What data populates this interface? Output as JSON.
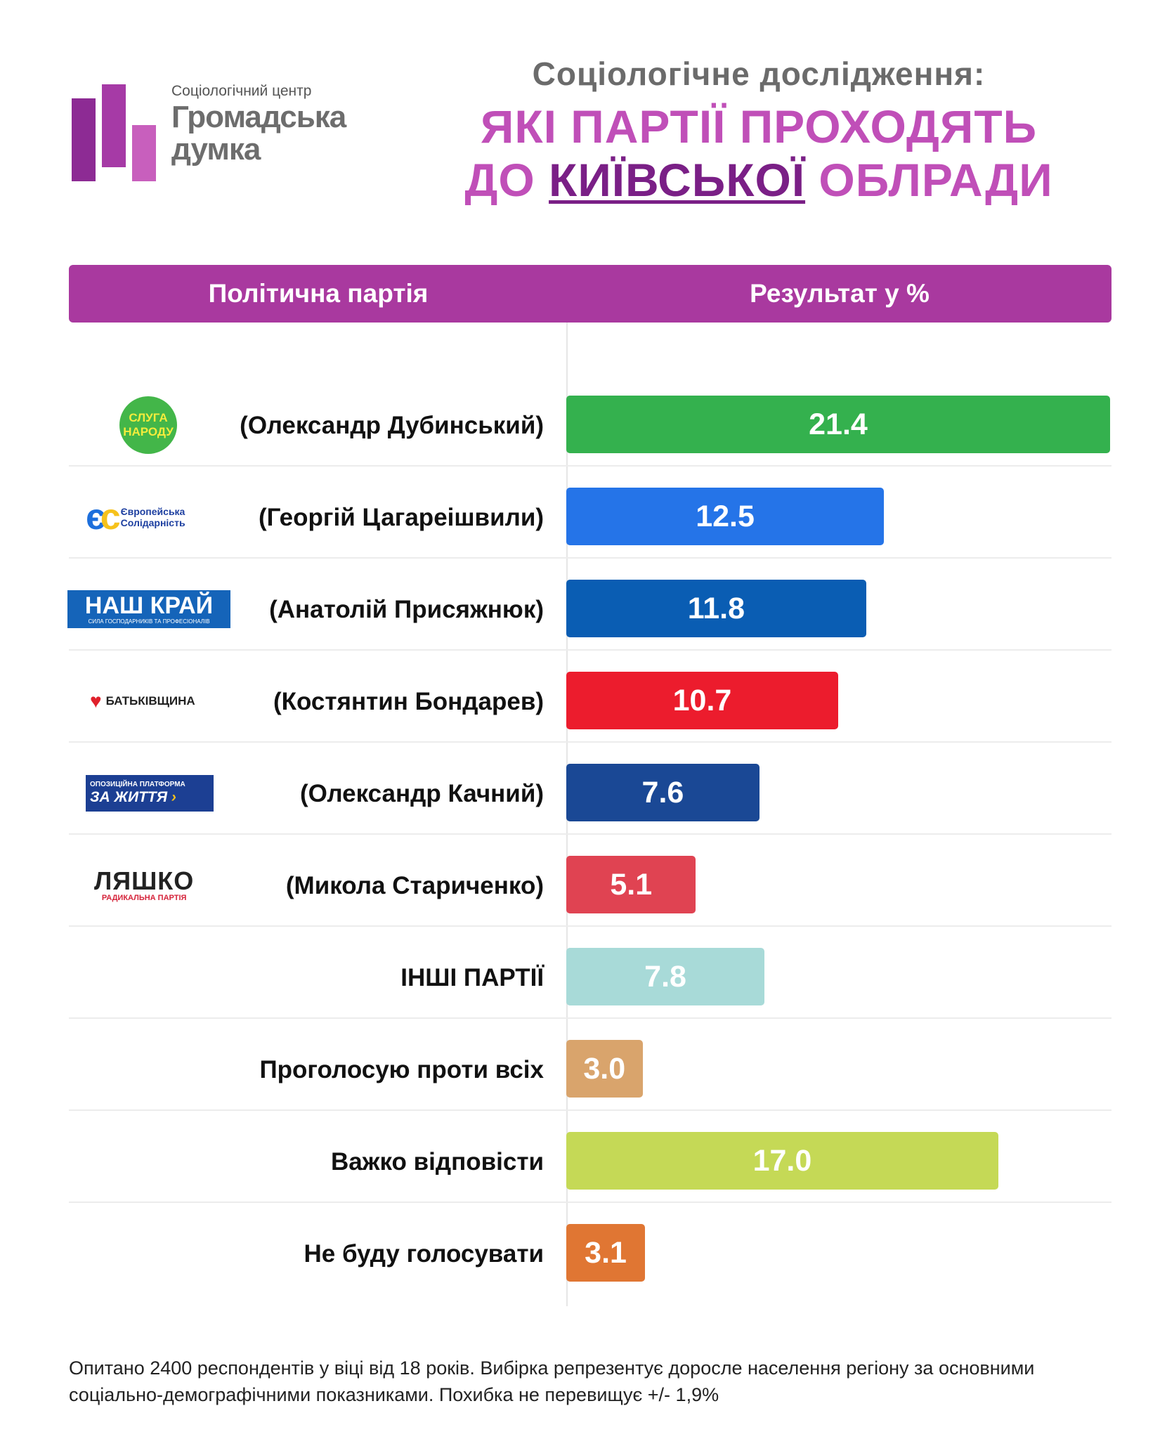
{
  "logo": {
    "caption": "Соціологічний центр",
    "name_line1": "Громадська",
    "name_line2": "думка"
  },
  "header": {
    "subtitle": "Соціологічне дослідження:",
    "title_line1": "ЯКІ ПАРТІЇ ПРОХОДЯТЬ",
    "title_line2_pre": "ДО ",
    "title_line2_highlight": "КИЇВСЬКОЇ",
    "title_line2_post": " ОБЛРАДИ"
  },
  "table_header": {
    "party": "Політична партія",
    "result": "Результат у %"
  },
  "party_logos": {
    "sluha": "СЛУГА НАРОДУ",
    "es_line1": "Європейська",
    "es_line2": "Солідарність",
    "nk_main": "НАШ КРАЙ",
    "nk_sub": "СИЛА ГОСПОДАРНИКІВ ТА ПРОФЕСІОНАЛІВ",
    "bat": "БАТЬКІВЩИНА",
    "opzzh_sub": "ОПОЗИЦІЙНА ПЛАТФОРМА",
    "opzzh_main": "ЗА ЖИТТЯ",
    "lyashko_main": "ЛЯШКО",
    "lyashko_sub": "РАДИКАЛЬНА ПАРТІЯ"
  },
  "chart_data": {
    "type": "bar",
    "orientation": "horizontal",
    "categories": [
      "(Олександр Дубинський)",
      "(Георгій Цагареішвили)",
      "(Анатолій Присяжнюк)",
      "(Костянтин Бондарев)",
      "(Олександр Качний)",
      "(Микола Стариченко)",
      "ІНШІ ПАРТІЇ",
      "Проголосую проти всіх",
      "Важко відповісти",
      "Не буду голосувати"
    ],
    "values": [
      21.4,
      12.5,
      11.8,
      10.7,
      7.6,
      5.1,
      7.8,
      3.0,
      17.0,
      3.1
    ],
    "value_labels": [
      "21.4",
      "12.5",
      "11.8",
      "10.7",
      "7.6",
      "5.1",
      "7.8",
      "3.0",
      "17.0",
      "3.1"
    ],
    "logos": [
      "sluha",
      "es",
      "nk",
      "bat",
      "opzzh",
      "lyashko",
      "",
      "",
      "",
      ""
    ],
    "colors": [
      "#34b14e",
      "#2574e8",
      "#0a5db3",
      "#ec1c2d",
      "#1a4895",
      "#e04352",
      "#a8dad8",
      "#d9a46c",
      "#c5d956",
      "#e07633"
    ],
    "xlim": [
      0,
      21.4
    ],
    "title": "",
    "xlabel": "",
    "ylabel": ""
  },
  "footnote": "Опитано 2400 респондентів у віці від 18 років. Вибірка репрезентує доросле населення регіону за основними соціально-демографічними показниками. Похибка не перевищує +/- 1,9%"
}
